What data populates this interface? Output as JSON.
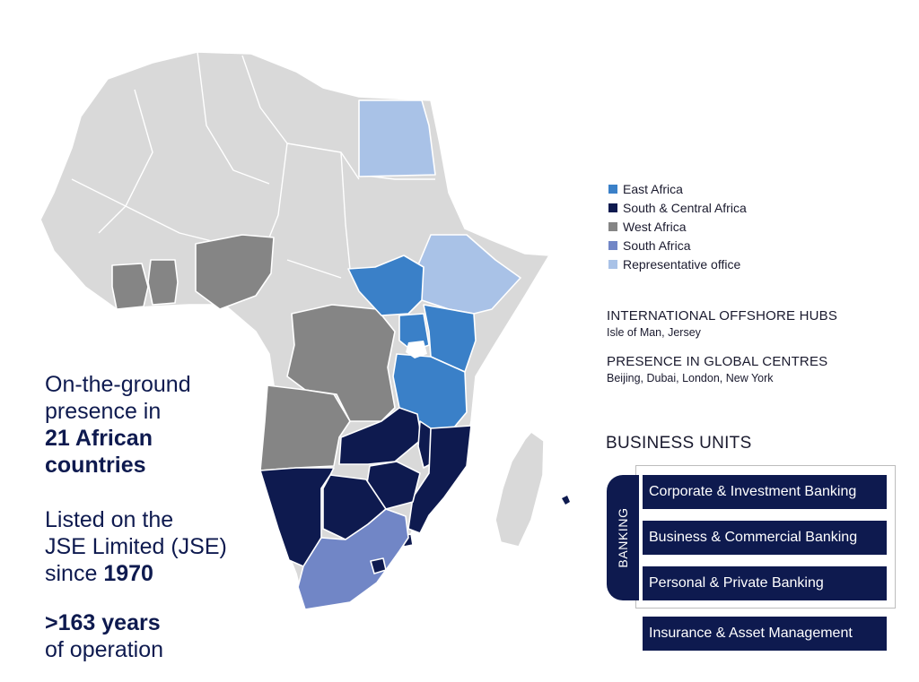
{
  "legend": [
    {
      "label": "East Africa",
      "color": "#3a80c8"
    },
    {
      "label": "South & Central Africa",
      "color": "#0e1a4f"
    },
    {
      "label": "West Africa",
      "color": "#858585"
    },
    {
      "label": "South Africa",
      "color": "#7186c6"
    },
    {
      "label": "Representative office",
      "color": "#a9c2e7"
    }
  ],
  "offshore": {
    "title": "INTERNATIONAL OFFSHORE HUBS",
    "subtitle": "Isle of Man, Jersey"
  },
  "global": {
    "title": "PRESENCE IN GLOBAL CENTRES",
    "subtitle": "Beijing, Dubai, London, New York"
  },
  "business_units": {
    "title": "BUSINESS UNITS",
    "banking_label": "BANKING",
    "banking_units": [
      "Corporate & Investment Banking",
      "Business & Commercial Banking",
      "Personal & Private Banking"
    ],
    "other_unit": "Insurance & Asset Management"
  },
  "presence": {
    "line1": "On-the-ground",
    "line2": "presence in",
    "line3": "21 African",
    "line4": "countries"
  },
  "listing": {
    "line1": "Listed on the",
    "line2": "JSE Limited (JSE)",
    "line3_prefix": "since ",
    "line3_year": "1970"
  },
  "operation": {
    "years": ">163 years",
    "line2": "of operation"
  },
  "colors": {
    "navy": "#0e1a4f",
    "base_country": "#d9d9d9",
    "east": "#3a80c8",
    "south_central": "#0e1a4f",
    "west": "#858585",
    "south_africa": "#7186c6",
    "rep_office": "#a9c2e7"
  }
}
